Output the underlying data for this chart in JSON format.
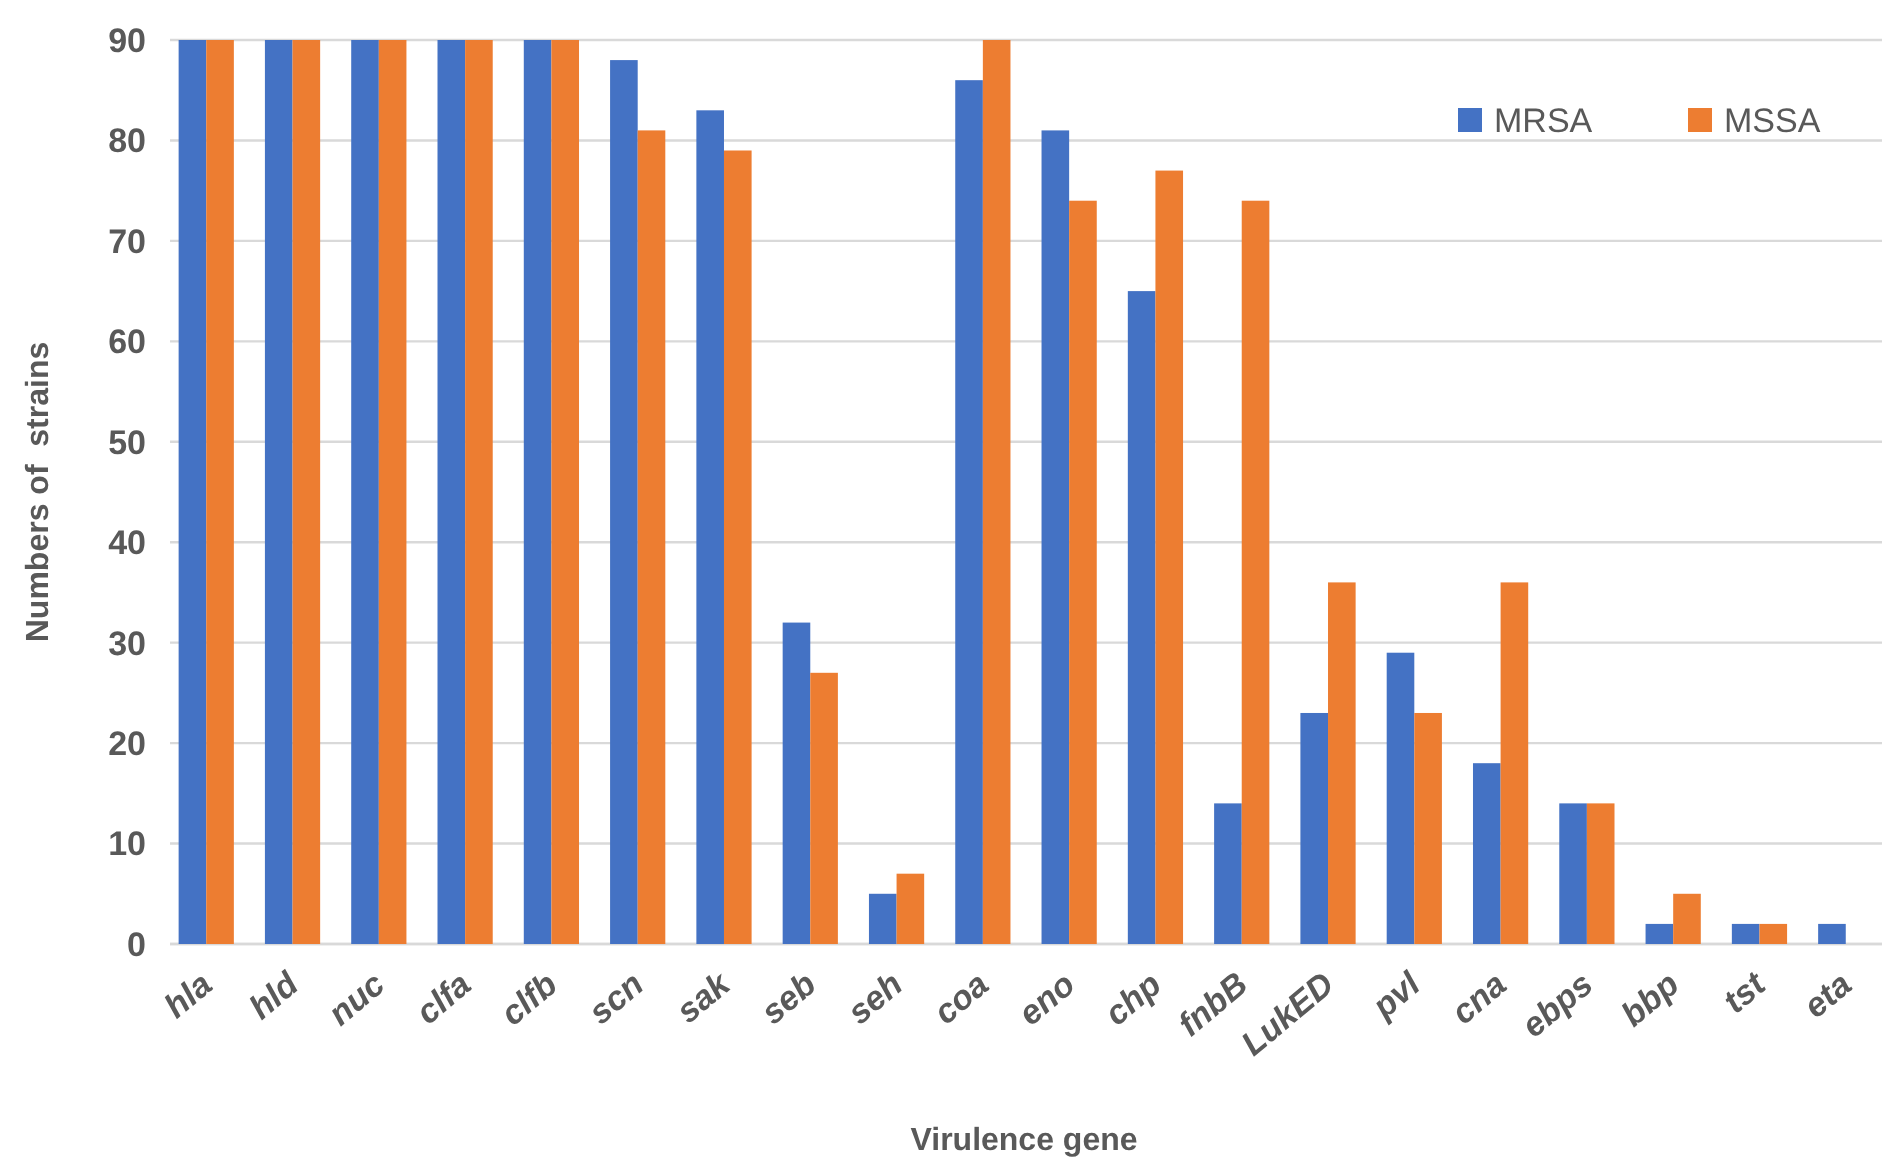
{
  "chart_data": {
    "type": "bar",
    "xlabel": "Virulence gene",
    "ylabel": "Numbers of  strains",
    "categories": [
      "hla",
      "hld",
      "nuc",
      "clfa",
      "clfb",
      "scn",
      "sak",
      "seb",
      "seh",
      "coa",
      "eno",
      "chp",
      "fnbB",
      "LukED",
      "pvl",
      "cna",
      "ebps",
      "bbp",
      "tst",
      "eta"
    ],
    "series": [
      {
        "name": "MRSA",
        "color": "#4472c4",
        "values": [
          90,
          90,
          90,
          90,
          90,
          88,
          83,
          32,
          5,
          86,
          81,
          65,
          14,
          23,
          29,
          18,
          14,
          2,
          2,
          2
        ]
      },
      {
        "name": "MSSA",
        "color": "#ed7d31",
        "values": [
          90,
          90,
          90,
          90,
          90,
          81,
          79,
          27,
          7,
          90,
          74,
          77,
          74,
          36,
          23,
          36,
          14,
          5,
          2,
          0
        ]
      }
    ],
    "ylim": [
      0,
      90
    ],
    "yticks": [
      0,
      10,
      20,
      30,
      40,
      50,
      60,
      70,
      80,
      90
    ],
    "grid": "y",
    "legend": "top right"
  }
}
